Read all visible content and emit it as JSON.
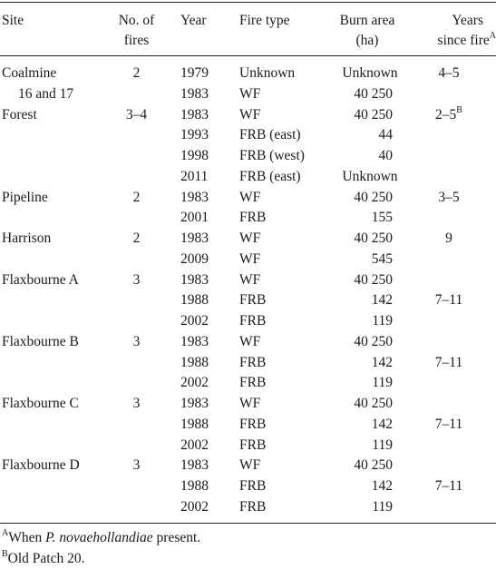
{
  "headers": {
    "site": "Site",
    "fires": [
      "No. of",
      "fires"
    ],
    "year": "Year",
    "fire_type": "Fire type",
    "burn_area": [
      "Burn area",
      "(ha)"
    ],
    "since": [
      "Years",
      "since fire"
    ],
    "since_sup": "A"
  },
  "rows": [
    {
      "site": "Coalmine",
      "fires": "2",
      "year": "1979",
      "type": "Unknown",
      "area": "Unknown",
      "since": "4–5"
    },
    {
      "site": "16 and 17",
      "fires": "",
      "year": "1983",
      "type": "WF",
      "area": "40 250",
      "since": ""
    },
    {
      "site": "Forest",
      "fires": "3–4",
      "year": "1983",
      "type": "WF",
      "area": "40 250",
      "since": "2–5",
      "since_sup": "B"
    },
    {
      "site": "",
      "fires": "",
      "year": "1993",
      "type": "FRB (east)",
      "area": "44",
      "since": ""
    },
    {
      "site": "",
      "fires": "",
      "year": "1998",
      "type": "FRB (west)",
      "area": "40",
      "since": ""
    },
    {
      "site": "",
      "fires": "",
      "year": "2011",
      "type": "FRB (east)",
      "area": "Unknown",
      "since": ""
    },
    {
      "site": "Pipeline",
      "fires": "2",
      "year": "1983",
      "type": "WF",
      "area": "40 250",
      "since": "3–5"
    },
    {
      "site": "",
      "fires": "",
      "year": "2001",
      "type": "FRB",
      "area": "155",
      "since": ""
    },
    {
      "site": "Harrison",
      "fires": "2",
      "year": "1983",
      "type": "WF",
      "area": "40 250",
      "since": "9"
    },
    {
      "site": "",
      "fires": "",
      "year": "2009",
      "type": "WF",
      "area": "545",
      "since": ""
    },
    {
      "site": "Flaxbourne A",
      "fires": "3",
      "year": "1983",
      "type": "WF",
      "area": "40 250",
      "since": ""
    },
    {
      "site": "",
      "fires": "",
      "year": "1988",
      "type": "FRB",
      "area": "142",
      "since": "7–11"
    },
    {
      "site": "",
      "fires": "",
      "year": "2002",
      "type": "FRB",
      "area": "119",
      "since": ""
    },
    {
      "site": "Flaxbourne B",
      "fires": "3",
      "year": "1983",
      "type": "WF",
      "area": "40 250",
      "since": ""
    },
    {
      "site": "",
      "fires": "",
      "year": "1988",
      "type": "FRB",
      "area": "142",
      "since": "7–11"
    },
    {
      "site": "",
      "fires": "",
      "year": "2002",
      "type": "FRB",
      "area": "119",
      "since": ""
    },
    {
      "site": "Flaxbourne C",
      "fires": "3",
      "year": "1983",
      "type": "WF",
      "area": "40 250",
      "since": ""
    },
    {
      "site": "",
      "fires": "",
      "year": "1988",
      "type": "FRB",
      "area": "142",
      "since": "7–11"
    },
    {
      "site": "",
      "fires": "",
      "year": "2002",
      "type": "FRB",
      "area": "119",
      "since": ""
    },
    {
      "site": "Flaxbourne D",
      "fires": "3",
      "year": "1983",
      "type": "WF",
      "area": "40 250",
      "since": ""
    },
    {
      "site": "",
      "fires": "",
      "year": "1988",
      "type": "FRB",
      "area": "142",
      "since": "7–11"
    },
    {
      "site": "",
      "fires": "",
      "year": "2002",
      "type": "FRB",
      "area": "119",
      "since": ""
    }
  ],
  "footnotes": {
    "a": {
      "mark": "A",
      "pre": "When ",
      "species": "P. novaehollandiae",
      "post": " present."
    },
    "b": {
      "mark": "B",
      "text": "Old Patch 20."
    }
  }
}
